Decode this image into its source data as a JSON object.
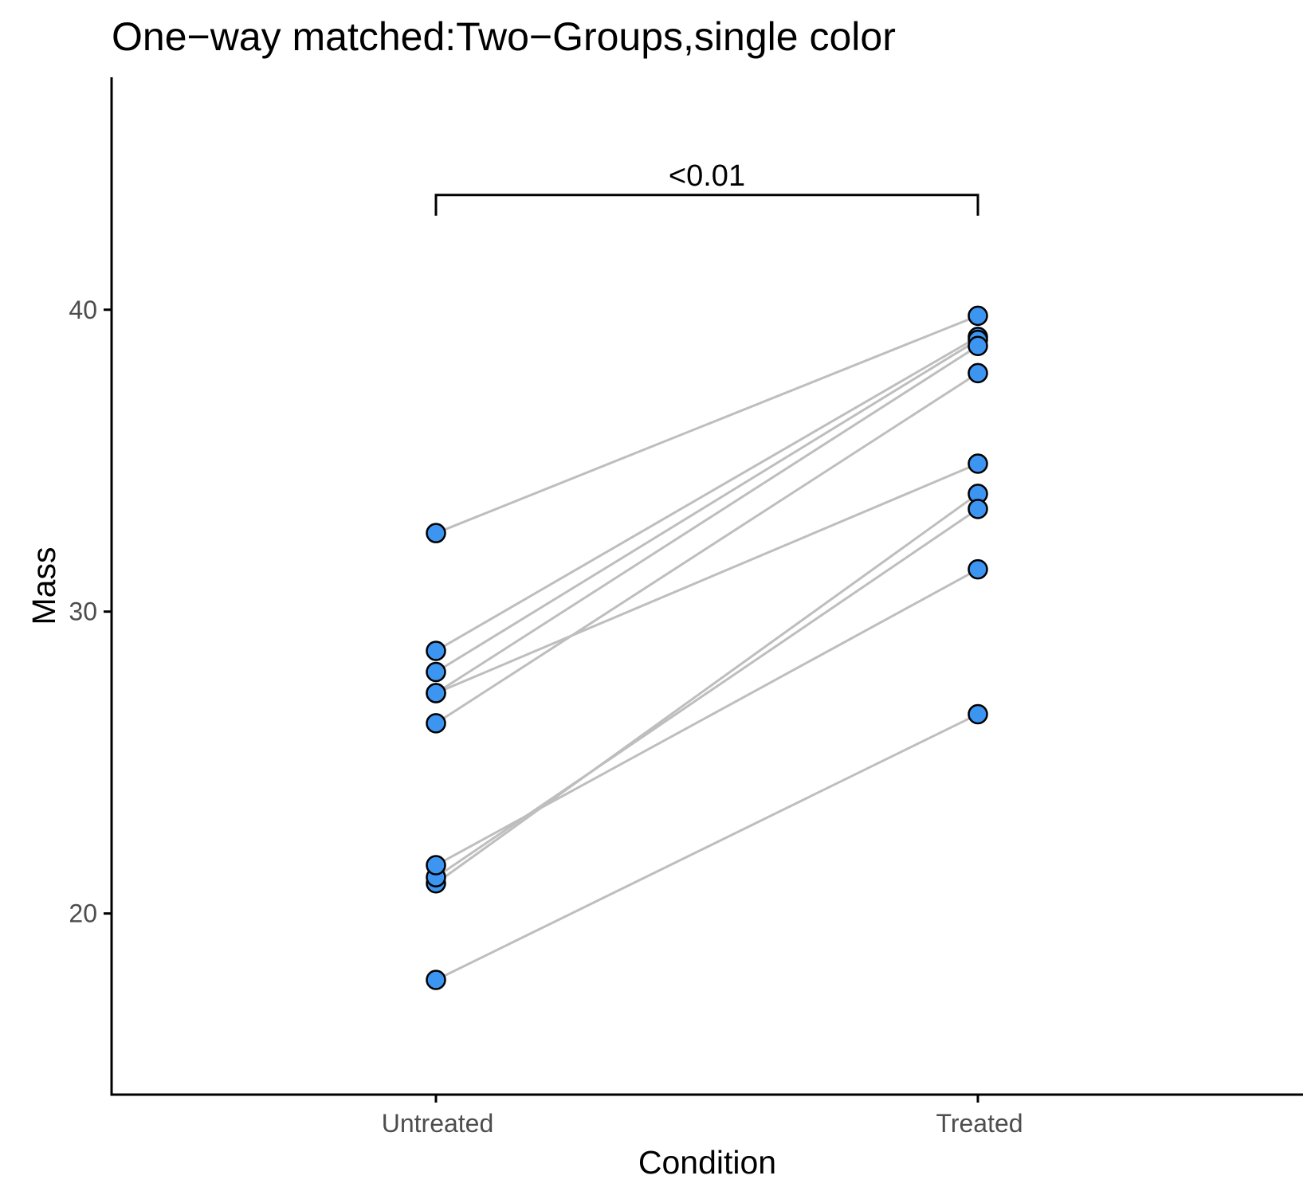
{
  "chart_data": {
    "type": "scatter",
    "title": "One−way matched:Two−Groups,single color",
    "xlabel": "Condition",
    "ylabel": "Mass",
    "categories": [
      "Untreated",
      "Treated"
    ],
    "yticks": [
      20,
      30,
      40
    ],
    "ylim": [
      14,
      47.7
    ],
    "grid": false,
    "legend": "none",
    "colors": {
      "point_fill": "#3d95f2",
      "point_stroke": "#000000",
      "pair_line": "#bebebe",
      "axis": "#000000",
      "tick_label": "#4d4d4d"
    },
    "pairs": [
      {
        "untreated": 32.6,
        "treated": 39.8
      },
      {
        "untreated": 28.7,
        "treated": 39.1
      },
      {
        "untreated": 28.0,
        "treated": 39.0
      },
      {
        "untreated": 27.3,
        "treated": 38.8
      },
      {
        "untreated": 26.3,
        "treated": 37.9
      },
      {
        "untreated": 27.3,
        "treated": 34.9
      },
      {
        "untreated": 21.0,
        "treated": 33.9
      },
      {
        "untreated": 21.2,
        "treated": 33.4
      },
      {
        "untreated": 21.6,
        "treated": 31.4
      },
      {
        "untreated": 17.8,
        "treated": 26.6
      }
    ],
    "comparison": {
      "groups": [
        "Untreated",
        "Treated"
      ],
      "y": 43.8,
      "label": "<0.01"
    }
  }
}
